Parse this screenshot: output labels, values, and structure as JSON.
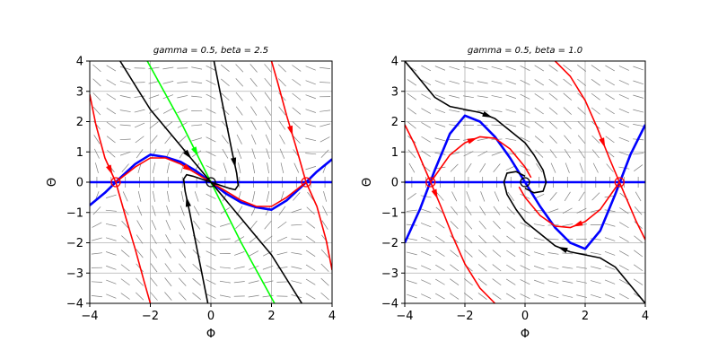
{
  "chart_data": [
    {
      "type": "line",
      "title": "gamma = 0.5, beta = 2.5",
      "xlabel": "Φ",
      "ylabel": "Θ",
      "xlim": [
        -4,
        4
      ],
      "ylim": [
        -4,
        4
      ],
      "xticks": [
        -4,
        -2,
        0,
        2,
        4
      ],
      "yticks": [
        -4,
        -3,
        -2,
        -1,
        0,
        1,
        2,
        3,
        4
      ],
      "grid": true,
      "gamma": 0.5,
      "beta": 2.5,
      "fixed_points": [
        -3.14159,
        0,
        3.14159
      ],
      "series": [
        {
          "color": "#0000ff",
          "kind": "nullcline",
          "x": [
            -4,
            -3.5,
            -3,
            -2.5,
            -2,
            -1.5,
            -1,
            -0.5,
            0,
            0.5,
            1,
            1.5,
            2,
            2.5,
            3,
            3.5,
            4
          ],
          "y": [
            -0.76,
            -0.35,
            0.14,
            0.6,
            0.91,
            0.83,
            0.67,
            0.38,
            0,
            -0.38,
            -0.67,
            -0.83,
            -0.91,
            -0.6,
            -0.14,
            0.35,
            0.76
          ]
        },
        {
          "color": "#0000ff",
          "kind": "nullcline",
          "x": [
            -4,
            4
          ],
          "y": [
            0,
            0
          ]
        },
        {
          "color": "#00ff00",
          "kind": "separatrix",
          "x": [
            -2.1,
            -1,
            0,
            1,
            2.1
          ],
          "y": [
            4,
            2,
            0,
            -2,
            -4
          ]
        },
        {
          "color": "#ff0000",
          "kind": "separatrix",
          "x": [
            -4,
            -3.8,
            -3.5,
            -3.14,
            -2.8,
            -2.5,
            -2.2,
            -2.0
          ],
          "y": [
            2.9,
            1.9,
            0.8,
            0,
            -1.2,
            -2.2,
            -3.3,
            -4
          ]
        },
        {
          "color": "#ff0000",
          "kind": "separatrix",
          "x": [
            -3.14,
            -2.5,
            -2,
            -1.5,
            -1,
            -0.5,
            0,
            0.5,
            1,
            1.5,
            2,
            2.5,
            3.14
          ],
          "y": [
            0,
            0.5,
            0.8,
            0.8,
            0.6,
            0.3,
            0,
            -0.3,
            -0.6,
            -0.8,
            -0.8,
            -0.5,
            0
          ]
        },
        {
          "color": "#ff0000",
          "kind": "separatrix",
          "x": [
            2.0,
            2.2,
            2.5,
            2.8,
            3.14,
            3.5,
            3.8,
            4
          ],
          "y": [
            4,
            3.3,
            2.2,
            1.2,
            0,
            -0.8,
            -1.9,
            -2.9
          ]
        },
        {
          "color": "#000000",
          "kind": "trajectory",
          "x": [
            -3,
            -2.5,
            -2,
            -1.5,
            -1,
            -0.5,
            0,
            0.5,
            1,
            1.5,
            2,
            2.5,
            3
          ],
          "y": [
            4,
            3.2,
            2.4,
            1.8,
            1.2,
            0.6,
            0,
            -0.6,
            -1.2,
            -1.8,
            -2.4,
            -3.2,
            -4
          ]
        },
        {
          "color": "#000000",
          "kind": "trajectory",
          "x": [
            0.1,
            0.3,
            0.5,
            0.7,
            0.85,
            0.9,
            0.8,
            0.6,
            0.3,
            0
          ],
          "y": [
            4,
            3,
            2,
            1,
            0.3,
            -0.1,
            -0.25,
            -0.2,
            -0.1,
            0
          ]
        },
        {
          "color": "#000000",
          "kind": "trajectory",
          "x": [
            -0.1,
            -0.3,
            -0.5,
            -0.7,
            -0.85,
            -0.9,
            -0.8,
            -0.6,
            -0.3,
            0
          ],
          "y": [
            -4,
            -3,
            -2,
            -1,
            -0.3,
            0.1,
            0.25,
            0.2,
            0.1,
            0
          ]
        }
      ]
    },
    {
      "type": "line",
      "title": "gamma = 0.5, beta = 1.0",
      "xlabel": "Φ",
      "ylabel": "Θ",
      "xlim": [
        -4,
        4
      ],
      "ylim": [
        -4,
        4
      ],
      "xticks": [
        -4,
        -2,
        0,
        2,
        4
      ],
      "yticks": [
        -4,
        -3,
        -2,
        -1,
        0,
        1,
        2,
        3,
        4
      ],
      "grid": true,
      "gamma": 0.5,
      "beta": 1.0,
      "fixed_points": [
        -3.14159,
        0,
        3.14159
      ],
      "series": [
        {
          "color": "#0000ff",
          "kind": "nullcline",
          "x": [
            -4,
            -3.5,
            -3,
            -2.5,
            -2,
            -1.5,
            -1,
            -0.5,
            0,
            0.5,
            1,
            1.5,
            2,
            2.5,
            3,
            3.5,
            4
          ],
          "y": [
            -2,
            -0.9,
            0.4,
            1.6,
            2.2,
            2,
            1.5,
            0.8,
            0,
            -0.8,
            -1.5,
            -2,
            -2.2,
            -1.6,
            -0.4,
            0.9,
            1.9
          ]
        },
        {
          "color": "#0000ff",
          "kind": "nullcline",
          "x": [
            -4,
            4
          ],
          "y": [
            0,
            0
          ]
        },
        {
          "color": "#ff0000",
          "kind": "separatrix",
          "x": [
            -4,
            -3.7,
            -3.4,
            -3.14,
            -2.8,
            -2.4,
            -2,
            -1.5,
            -1.0
          ],
          "y": [
            1.9,
            1.3,
            0.6,
            0,
            -0.8,
            -1.8,
            -2.7,
            -3.5,
            -4
          ]
        },
        {
          "color": "#ff0000",
          "kind": "separatrix",
          "x": [
            -3.14,
            -2.5,
            -2,
            -1.5,
            -1,
            -0.5,
            0,
            0.2
          ],
          "y": [
            0,
            0.9,
            1.3,
            1.5,
            1.45,
            1.1,
            0.5,
            0.15
          ]
        },
        {
          "color": "#ff0000",
          "kind": "separatrix",
          "x": [
            3.14,
            2.5,
            2,
            1.5,
            1,
            0.5,
            0,
            -0.2
          ],
          "y": [
            0,
            -0.9,
            -1.3,
            -1.5,
            -1.45,
            -1.1,
            -0.5,
            -0.15
          ]
        },
        {
          "color": "#ff0000",
          "kind": "separatrix",
          "x": [
            1.0,
            1.5,
            2,
            2.4,
            2.8,
            3.14,
            3.4,
            3.7,
            4
          ],
          "y": [
            4,
            3.5,
            2.7,
            1.8,
            0.8,
            0,
            -0.6,
            -1.3,
            -1.9
          ]
        },
        {
          "color": "#000000",
          "kind": "trajectory",
          "x": [
            -4,
            -3.5,
            -3,
            -2.5,
            -2,
            -1.5,
            -1,
            -0.5,
            0,
            0.3,
            0.6,
            0.7,
            0.6,
            0.3,
            0
          ],
          "y": [
            4,
            3.4,
            2.8,
            2.5,
            2.4,
            2.3,
            2.1,
            1.7,
            1.3,
            0.9,
            0.4,
            0,
            -0.3,
            -0.35,
            -0.2
          ]
        },
        {
          "color": "#000000",
          "kind": "trajectory",
          "x": [
            4,
            3.5,
            3,
            2.5,
            2,
            1.5,
            1,
            0.5,
            0,
            -0.3,
            -0.6,
            -0.7,
            -0.6,
            -0.3,
            0
          ],
          "y": [
            -4,
            -3.4,
            -2.8,
            -2.5,
            -2.4,
            -2.3,
            -2.1,
            -1.7,
            -1.3,
            -0.9,
            -0.4,
            0,
            0.3,
            0.35,
            0.2
          ]
        }
      ]
    }
  ]
}
